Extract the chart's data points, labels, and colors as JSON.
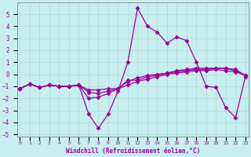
{
  "xlabel": "Windchill (Refroidissement éolien,°C)",
  "background_color": "#c8eef0",
  "grid_color": "#b0d8da",
  "line_color": "#990099",
  "x": [
    0,
    1,
    2,
    3,
    4,
    5,
    6,
    7,
    8,
    9,
    10,
    11,
    12,
    13,
    14,
    15,
    16,
    17,
    18,
    19,
    20,
    21,
    22,
    23
  ],
  "line1": [
    -1.2,
    -0.8,
    -1.1,
    -0.9,
    -1.0,
    -1.0,
    -0.9,
    -3.3,
    -4.5,
    -3.3,
    -1.4,
    1.0,
    5.5,
    4.0,
    3.5,
    2.6,
    3.1,
    2.8,
    1.0,
    -1.0,
    -1.1,
    -2.8,
    -3.6,
    -0.2
  ],
  "line2": [
    -1.2,
    -0.8,
    -1.1,
    -0.9,
    -1.0,
    -1.0,
    -0.9,
    -1.5,
    -1.6,
    -1.4,
    -1.2,
    -0.5,
    -0.5,
    -0.2,
    -0.1,
    0.1,
    0.3,
    0.4,
    0.5,
    0.5,
    0.5,
    0.5,
    0.4,
    -0.1
  ],
  "line3": [
    -1.2,
    -0.8,
    -1.1,
    -0.9,
    -1.0,
    -1.0,
    -0.9,
    -2.0,
    -1.9,
    -1.6,
    -1.2,
    -0.9,
    -0.6,
    -0.4,
    -0.2,
    0.0,
    0.1,
    0.2,
    0.3,
    0.3,
    0.4,
    0.3,
    0.2,
    -0.1
  ],
  "line4": [
    -1.2,
    -0.8,
    -1.1,
    -0.9,
    -1.0,
    -1.0,
    -0.9,
    -1.3,
    -1.3,
    -1.2,
    -1.2,
    -0.6,
    -0.3,
    -0.1,
    0.0,
    0.1,
    0.2,
    0.3,
    0.4,
    0.4,
    0.5,
    0.5,
    0.3,
    -0.1
  ],
  "ylim": [
    -5.2,
    6.0
  ],
  "yticks": [
    -5,
    -4,
    -3,
    -2,
    -1,
    0,
    1,
    2,
    3,
    4,
    5
  ],
  "xticks": [
    0,
    1,
    2,
    3,
    4,
    5,
    6,
    7,
    8,
    9,
    10,
    11,
    12,
    13,
    14,
    15,
    16,
    17,
    18,
    19,
    20,
    21,
    22,
    23
  ],
  "xtick_labels": [
    "0",
    "1",
    "2",
    "3",
    "4",
    "5",
    "6",
    "7",
    "8",
    "9",
    "10",
    "11",
    "12",
    "13",
    "14",
    "15",
    "16",
    "17",
    "18",
    "19",
    "20",
    "21",
    "22",
    "23"
  ]
}
